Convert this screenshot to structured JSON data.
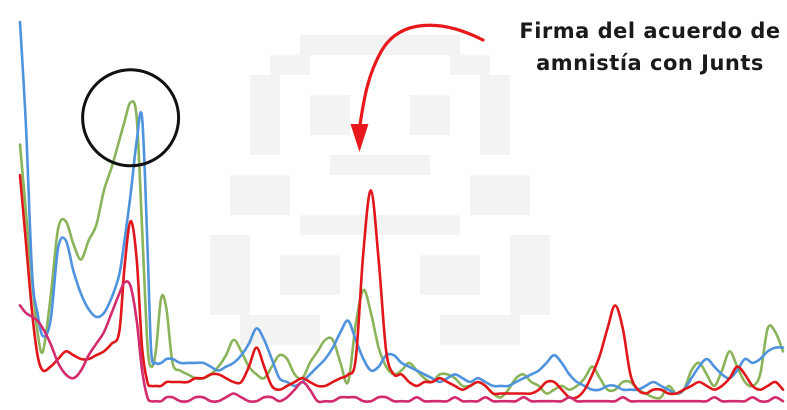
{
  "chart_data": {
    "type": "line",
    "title": "",
    "xlabel": "",
    "ylabel": "",
    "xlim": [
      0,
      100
    ],
    "ylim": [
      0,
      100
    ],
    "grid": false,
    "annotation": {
      "lines": [
        "Firma del acuerdo de",
        "amnistía con Junts"
      ],
      "arrow_color": "#e8191c",
      "points_to_x": 44.5
    },
    "highlight_circle": {
      "x": 14.5,
      "y": 75,
      "stroke": "#111111"
    },
    "series": [
      {
        "color": "#8bb45a",
        "x": [
          0,
          0.8,
          1.6,
          2.3,
          3,
          4,
          5,
          6,
          7,
          8,
          9,
          10,
          11,
          12,
          13,
          13.7,
          14.5,
          15.3,
          16,
          16.7,
          17.2,
          17.8,
          18.5,
          19.2,
          20,
          21,
          22,
          23,
          24,
          25,
          26,
          27,
          28,
          29,
          30,
          31,
          32,
          33,
          34,
          35,
          36,
          37,
          38,
          39,
          40,
          41,
          42,
          43,
          44,
          45,
          46,
          47,
          48,
          49,
          50,
          51,
          52,
          53,
          54,
          55,
          56,
          57,
          58,
          59,
          60,
          61,
          62,
          63,
          64,
          65,
          66,
          67,
          68,
          69,
          70,
          71,
          72,
          73,
          74,
          75,
          76,
          77,
          78,
          79,
          80,
          81,
          82,
          83,
          84,
          85,
          86,
          87,
          88,
          89,
          90,
          91,
          92,
          93,
          94,
          95,
          96,
          97,
          98,
          99,
          100
        ],
        "values": [
          68,
          50,
          32,
          19,
          14,
          28,
          46,
          48,
          42,
          38,
          43,
          47,
          56,
          62,
          69,
          74,
          79,
          75,
          46,
          16,
          10,
          14,
          28,
          25,
          11,
          9,
          8,
          7,
          7,
          8,
          10,
          13,
          17,
          14,
          10,
          8,
          7,
          10,
          13,
          12,
          8,
          7,
          11,
          14,
          17,
          17,
          11,
          6,
          21,
          30,
          24,
          15,
          10,
          8,
          9,
          11,
          9,
          7,
          6,
          8,
          8,
          7,
          5,
          5,
          6,
          5,
          3,
          2,
          4,
          7,
          8,
          6,
          5,
          3,
          4,
          5,
          4,
          5,
          7,
          10,
          7,
          4,
          4,
          6,
          6,
          4,
          3,
          2,
          2,
          5,
          3,
          4,
          9,
          11,
          8,
          5,
          9,
          14,
          10,
          6,
          5,
          8,
          20,
          19,
          14
        ]
      },
      {
        "color": "#4f93de",
        "x": [
          0,
          0.8,
          1.6,
          2.3,
          3,
          4,
          5,
          6,
          7,
          8,
          9,
          10,
          11,
          12,
          13,
          13.7,
          14.5,
          15.3,
          16,
          16.7,
          17.2,
          17.8,
          18.5,
          19.2,
          20,
          21,
          22,
          23,
          24,
          25,
          26,
          27,
          28,
          29,
          30,
          31,
          32,
          33,
          34,
          35,
          36,
          37,
          38,
          39,
          40,
          41,
          42,
          43,
          44,
          45,
          46,
          47,
          48,
          49,
          50,
          51,
          52,
          53,
          54,
          55,
          56,
          57,
          58,
          59,
          60,
          61,
          62,
          63,
          64,
          65,
          66,
          67,
          68,
          69,
          70,
          71,
          72,
          73,
          74,
          75,
          76,
          77,
          78,
          79,
          80,
          81,
          82,
          83,
          84,
          85,
          86,
          87,
          88,
          89,
          90,
          91,
          92,
          93,
          94,
          95,
          96,
          97,
          98,
          99,
          100
        ],
        "values": [
          100,
          72,
          34,
          24,
          18,
          22,
          41,
          43,
          35,
          29,
          25,
          23,
          24,
          28,
          34,
          43,
          55,
          69,
          75,
          42,
          14,
          11,
          11,
          12,
          12,
          11,
          11,
          11,
          11,
          10,
          9,
          10,
          11,
          13,
          16,
          20,
          17,
          12,
          7,
          6,
          5,
          6,
          8,
          10,
          12,
          15,
          19,
          22,
          17,
          12,
          9,
          10,
          13,
          13,
          11,
          10,
          9,
          8,
          7,
          6,
          7,
          8,
          7,
          6,
          7,
          6,
          5,
          5,
          5,
          6,
          7,
          8,
          9,
          11,
          13,
          11,
          8,
          6,
          5,
          4,
          4,
          5,
          5,
          4,
          4,
          4,
          5,
          6,
          5,
          4,
          3,
          4,
          7,
          10,
          12,
          10,
          8,
          7,
          9,
          12,
          11,
          12,
          14,
          15,
          15
        ]
      },
      {
        "color": "#e0161a",
        "x": [
          0,
          0.8,
          1.6,
          2.3,
          3,
          4,
          5,
          6,
          7,
          8,
          9,
          10,
          11,
          12,
          13,
          13.7,
          14.5,
          15.3,
          16,
          16.7,
          17.2,
          17.8,
          18.5,
          19.2,
          20,
          21,
          22,
          23,
          24,
          25,
          26,
          27,
          28,
          29,
          30,
          31,
          32,
          33,
          34,
          35,
          36,
          37,
          38,
          39,
          40,
          41,
          42,
          43,
          44,
          45,
          46,
          47,
          48,
          49,
          50,
          51,
          52,
          53,
          54,
          55,
          56,
          57,
          58,
          59,
          60,
          61,
          62,
          63,
          64,
          65,
          66,
          67,
          68,
          69,
          70,
          71,
          72,
          73,
          74,
          75,
          76,
          77,
          78,
          79,
          80,
          81,
          82,
          83,
          84,
          85,
          86,
          87,
          88,
          89,
          90,
          91,
          92,
          93,
          94,
          95,
          96,
          97,
          98,
          99,
          100
        ],
        "values": [
          60,
          42,
          24,
          13,
          9,
          10,
          12,
          14,
          13,
          12,
          12,
          13,
          14,
          16,
          19,
          36,
          48,
          38,
          15,
          6,
          5,
          5,
          5,
          6,
          6,
          6,
          6,
          7,
          7,
          8,
          8,
          7,
          6,
          6,
          10,
          15,
          10,
          5,
          4,
          5,
          6,
          7,
          6,
          5,
          5,
          6,
          7,
          8,
          12,
          40,
          56,
          38,
          14,
          8,
          8,
          6,
          5,
          6,
          6,
          7,
          6,
          5,
          4,
          5,
          6,
          5,
          3,
          3,
          3,
          3,
          3,
          3,
          4,
          6,
          6,
          4,
          2,
          2,
          4,
          8,
          13,
          20,
          26,
          20,
          8,
          4,
          3,
          4,
          4,
          3,
          3,
          4,
          5,
          6,
          5,
          4,
          5,
          7,
          10,
          8,
          5,
          4,
          5,
          6,
          4
        ]
      },
      {
        "color": "#d22b6e",
        "x": [
          0,
          0.8,
          1.6,
          2.3,
          3,
          4,
          5,
          6,
          7,
          8,
          9,
          10,
          11,
          12,
          13,
          13.7,
          14.5,
          15.3,
          16,
          16.7,
          17.2,
          17.8,
          18.5,
          19.2,
          20,
          21,
          22,
          23,
          24,
          25,
          26,
          27,
          28,
          29,
          30,
          31,
          32,
          33,
          34,
          35,
          36,
          37,
          38,
          39,
          40,
          41,
          42,
          43,
          44,
          45,
          46,
          47,
          48,
          49,
          50,
          51,
          52,
          53,
          54,
          55,
          56,
          57,
          58,
          59,
          60,
          61,
          62,
          63,
          64,
          65,
          66,
          67,
          68,
          69,
          70,
          71,
          72,
          73,
          74,
          75,
          76,
          77,
          78,
          79,
          80,
          81,
          82,
          83,
          84,
          85,
          86,
          87,
          88,
          89,
          90,
          91,
          92,
          93,
          94,
          95,
          96,
          97,
          98,
          99,
          100
        ],
        "values": [
          26,
          24,
          23,
          22,
          20,
          16,
          11,
          8,
          7,
          9,
          13,
          16,
          19,
          24,
          29,
          32,
          31,
          22,
          9,
          2,
          1,
          1,
          1,
          2,
          2,
          1,
          1,
          2,
          2,
          1,
          1,
          2,
          3,
          2,
          1,
          1,
          2,
          2,
          1,
          2,
          4,
          6,
          4,
          1,
          1,
          1,
          2,
          2,
          2,
          1,
          1,
          2,
          2,
          1,
          1,
          1,
          2,
          1,
          1,
          1,
          1,
          2,
          1,
          1,
          1,
          2,
          1,
          1,
          1,
          1,
          2,
          1,
          1,
          1,
          1,
          1,
          2,
          1,
          1,
          1,
          1,
          1,
          1,
          2,
          1,
          1,
          1,
          1,
          1,
          1,
          1,
          1,
          1,
          1,
          1,
          2,
          1,
          1,
          1,
          1,
          2,
          1,
          1,
          2,
          1
        ]
      }
    ]
  }
}
